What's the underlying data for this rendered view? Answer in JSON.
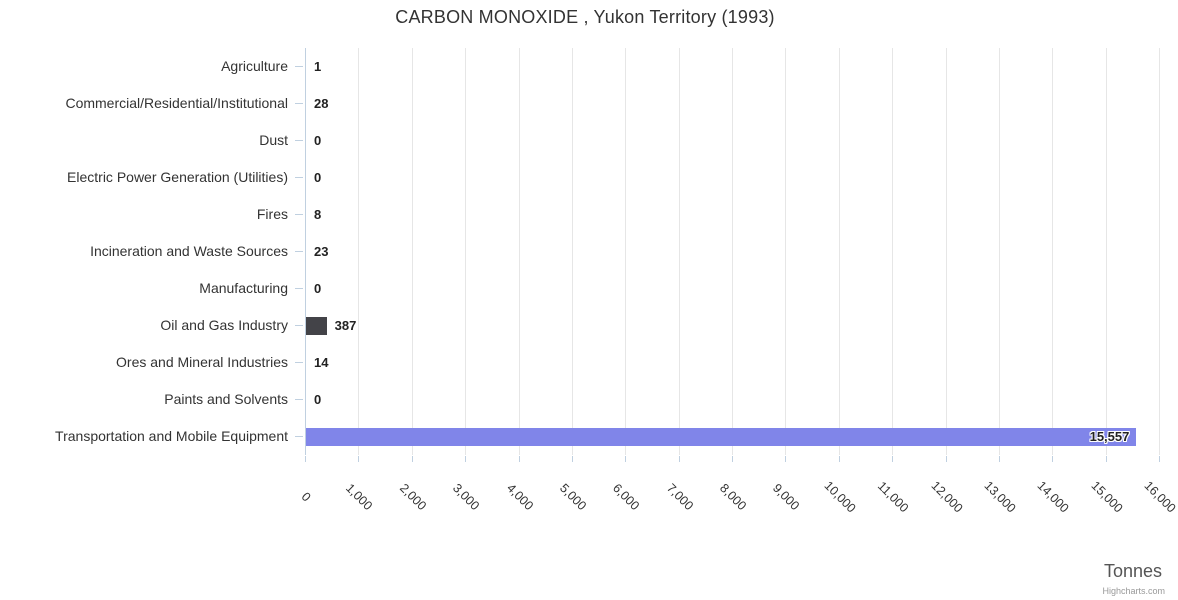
{
  "chart": {
    "credits_label": "Highcharts.com"
  },
  "chart_data": {
    "type": "bar",
    "orientation": "horizontal",
    "title": "CARBON MONOXIDE , Yukon Territory (1993)",
    "xlabel": "Tonnes",
    "ylabel": "",
    "categories": [
      "Agriculture",
      "Commercial/Residential/Institutional",
      "Dust",
      "Electric Power Generation (Utilities)",
      "Fires",
      "Incineration and Waste Sources",
      "Manufacturing",
      "Oil and Gas Industry",
      "Ores and Mineral Industries",
      "Paints and Solvents",
      "Transportation and Mobile Equipment"
    ],
    "values": [
      1,
      28,
      0,
      0,
      8,
      23,
      0,
      387,
      14,
      0,
      15557
    ],
    "value_labels": [
      "1",
      "28",
      "0",
      "0",
      "8",
      "23",
      "0",
      "387",
      "14",
      "0",
      "15,557"
    ],
    "bar_colors": [
      null,
      null,
      null,
      null,
      null,
      null,
      null,
      "#434348",
      null,
      null,
      "#8085e9"
    ],
    "xlim": [
      0,
      16000
    ],
    "x_tick_step": 1000,
    "x_tick_labels": [
      "0",
      "1,000",
      "2,000",
      "3,000",
      "4,000",
      "5,000",
      "6,000",
      "7,000",
      "8,000",
      "9,000",
      "10,000",
      "11,000",
      "12,000",
      "13,000",
      "14,000",
      "15,000",
      "16,000"
    ],
    "grid": true,
    "legend": false
  },
  "colors": {
    "background": "#ffffff",
    "grid": "#e6e6e6",
    "axis_line": "#c0d0e0",
    "tick": "#c0d0e0",
    "title_text": "#333333",
    "label_text": "#333333",
    "data_label_text": "#222222",
    "axis_title_text": "#555555",
    "credits_text": "#999999"
  }
}
